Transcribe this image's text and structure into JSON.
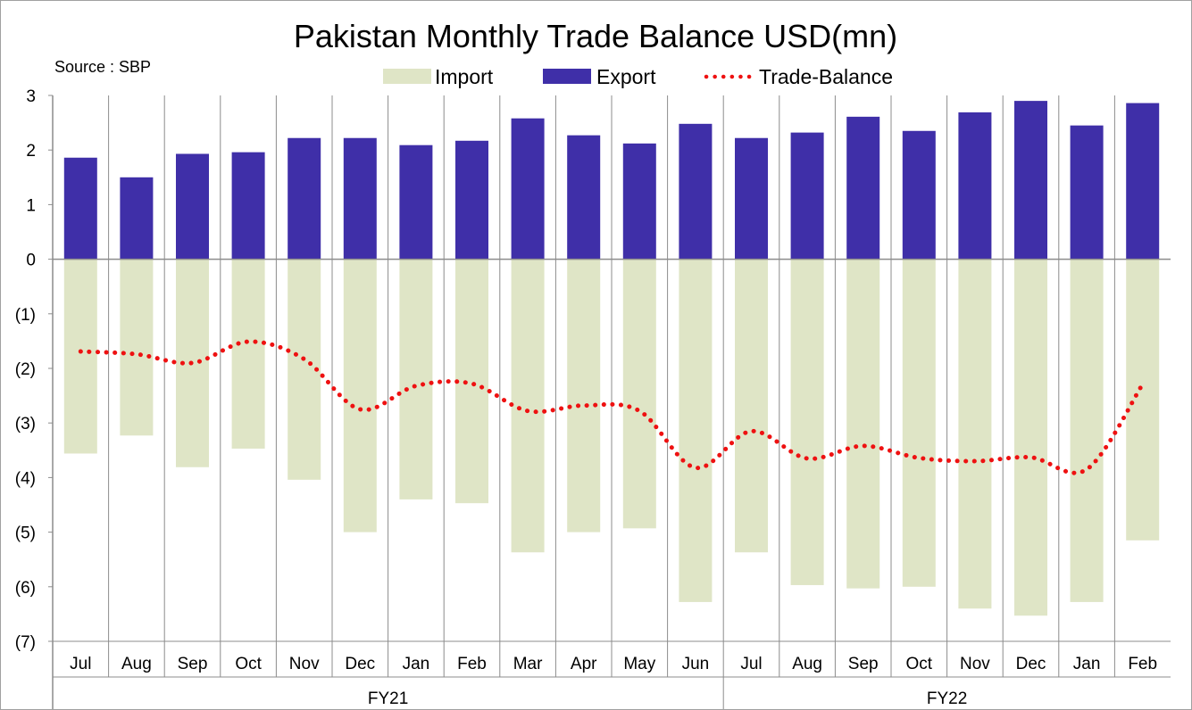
{
  "chart_data": {
    "type": "bar",
    "title": "Pakistan Monthly Trade Balance USD(mn)",
    "source": "Source : SBP",
    "categories": [
      "Jul",
      "Aug",
      "Sep",
      "Oct",
      "Nov",
      "Dec",
      "Jan",
      "Feb",
      "Mar",
      "Apr",
      "May",
      "Jun",
      "Jul",
      "Aug",
      "Sep",
      "Oct",
      "Nov",
      "Dec",
      "Jan",
      "Feb"
    ],
    "groups": [
      {
        "label": "FY21",
        "start": 0,
        "end": 11
      },
      {
        "label": "FY22",
        "start": 12,
        "end": 19
      }
    ],
    "series": [
      {
        "name": "Import",
        "kind": "bar",
        "color": "#dfe5c6",
        "values": [
          -3.56,
          -3.23,
          -3.81,
          -3.47,
          -4.04,
          -5.0,
          -4.4,
          -4.47,
          -5.37,
          -5.0,
          -4.93,
          -6.28,
          -5.37,
          -5.97,
          -6.03,
          -6.0,
          -6.4,
          -6.53,
          -6.28,
          -5.15
        ]
      },
      {
        "name": "Export",
        "kind": "bar",
        "color": "#3f2fa8",
        "values": [
          1.86,
          1.5,
          1.93,
          1.96,
          2.22,
          2.22,
          2.09,
          2.17,
          2.58,
          2.27,
          2.12,
          2.48,
          2.22,
          2.32,
          2.61,
          2.35,
          2.69,
          2.9,
          2.45,
          2.86
        ]
      },
      {
        "name": "Trade-Balance",
        "kind": "line",
        "style": "dotted",
        "color": "#ee1111",
        "values": [
          -1.69,
          -1.74,
          -1.9,
          -1.51,
          -1.83,
          -2.75,
          -2.32,
          -2.28,
          -2.78,
          -2.68,
          -2.78,
          -3.82,
          -3.15,
          -3.65,
          -3.42,
          -3.64,
          -3.7,
          -3.63,
          -3.85,
          -2.29
        ]
      }
    ],
    "ylim": [
      -7,
      3
    ],
    "yticks": [
      3,
      2,
      1,
      0,
      -1,
      -2,
      -3,
      -4,
      -5,
      -6,
      -7
    ],
    "ytick_labels": [
      "3",
      "2",
      "1",
      "0",
      "(1)",
      "(2)",
      "(3)",
      "(4)",
      "(5)",
      "(6)",
      "(7)"
    ],
    "grid": "vertical separators between categories",
    "legend_position": "top-center"
  }
}
